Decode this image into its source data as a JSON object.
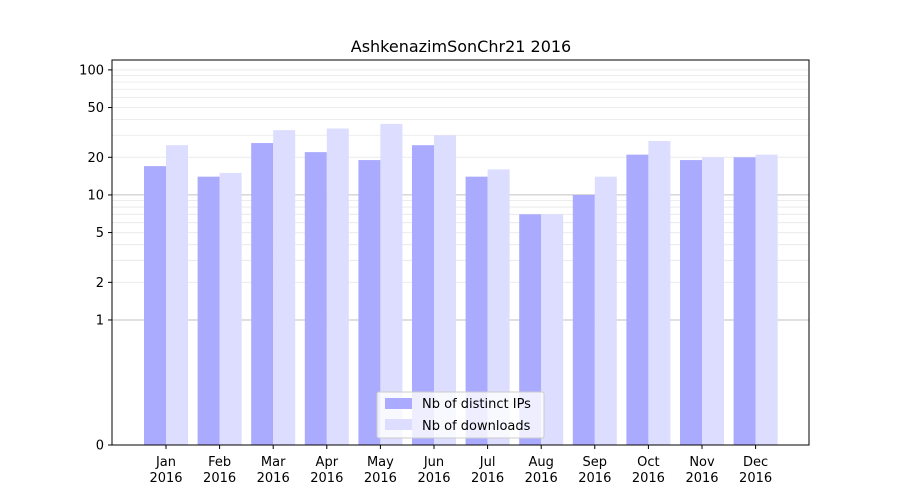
{
  "chart_data": {
    "type": "bar",
    "title": "AshkenazimSonChr21 2016",
    "xlabel": "",
    "ylabel": "",
    "yscale": "symlog",
    "ylim": [
      0,
      120
    ],
    "yticks": [
      {
        "value": 0,
        "label": "0"
      },
      {
        "value": 1,
        "label": "1"
      },
      {
        "value": 2,
        "label": "2"
      },
      {
        "value": 5,
        "label": "5"
      },
      {
        "value": 10,
        "label": "10"
      },
      {
        "value": 20,
        "label": "20"
      },
      {
        "value": 50,
        "label": "50"
      },
      {
        "value": 100,
        "label": "100"
      }
    ],
    "categories": [
      [
        "Jan",
        "2016"
      ],
      [
        "Feb",
        "2016"
      ],
      [
        "Mar",
        "2016"
      ],
      [
        "Apr",
        "2016"
      ],
      [
        "May",
        "2016"
      ],
      [
        "Jun",
        "2016"
      ],
      [
        "Jul",
        "2016"
      ],
      [
        "Aug",
        "2016"
      ],
      [
        "Sep",
        "2016"
      ],
      [
        "Oct",
        "2016"
      ],
      [
        "Nov",
        "2016"
      ],
      [
        "Dec",
        "2016"
      ]
    ],
    "series": [
      {
        "name": "Nb of distinct IPs",
        "color": "#aaaaff",
        "values": [
          17,
          14,
          26,
          22,
          19,
          25,
          14,
          7,
          10,
          21,
          19,
          20
        ]
      },
      {
        "name": "Nb of downloads",
        "color": "#ddddff",
        "values": [
          25,
          15,
          33,
          34,
          37,
          30,
          16,
          7,
          14,
          27,
          20,
          21
        ]
      }
    ],
    "grid": true,
    "legend": "bottom-center"
  }
}
